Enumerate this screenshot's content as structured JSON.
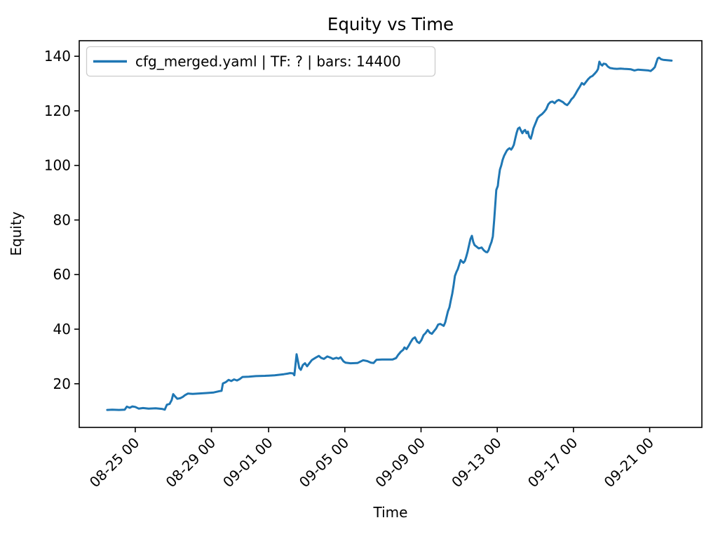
{
  "figure": {
    "background": "#ffffff",
    "text_color": "#000000",
    "spine_color": "#000000"
  },
  "chart_data": {
    "type": "line",
    "title": "Equity vs Time",
    "xlabel": "Time",
    "ylabel": "Equity",
    "grid": false,
    "legend_position": "upper left",
    "x_unit": "days, 0 = 08-23 00:00 (date axis, labels MM-DD HH)",
    "xlim": [
      -0.94,
      31.74
    ],
    "ylim": [
      4.0,
      145.7
    ],
    "y_ticks": [
      20,
      40,
      60,
      80,
      100,
      120,
      140
    ],
    "x_ticks": [
      {
        "d": 2,
        "label": "08-25 00"
      },
      {
        "d": 6,
        "label": "08-29 00"
      },
      {
        "d": 9,
        "label": "09-01 00"
      },
      {
        "d": 13,
        "label": "09-05 00"
      },
      {
        "d": 17,
        "label": "09-09 00"
      },
      {
        "d": 21,
        "label": "09-13 00"
      },
      {
        "d": 25,
        "label": "09-17 00"
      },
      {
        "d": 29,
        "label": "09-21 00"
      }
    ],
    "series": [
      {
        "name": "cfg_merged.yaml | TF: ? | bars: 14400",
        "color": "#1f77b4",
        "points": [
          [
            0.53,
            10.4
          ],
          [
            0.79,
            10.5
          ],
          [
            1.15,
            10.4
          ],
          [
            1.45,
            10.5
          ],
          [
            1.56,
            11.6
          ],
          [
            1.71,
            11.2
          ],
          [
            1.85,
            11.7
          ],
          [
            2.0,
            11.5
          ],
          [
            2.18,
            10.9
          ],
          [
            2.41,
            11.1
          ],
          [
            2.7,
            10.9
          ],
          [
            3.07,
            11.0
          ],
          [
            3.4,
            10.8
          ],
          [
            3.55,
            10.5
          ],
          [
            3.66,
            12.3
          ],
          [
            3.8,
            12.6
          ],
          [
            3.91,
            14.0
          ],
          [
            3.99,
            16.2
          ],
          [
            4.1,
            15.3
          ],
          [
            4.21,
            14.5
          ],
          [
            4.36,
            14.7
          ],
          [
            4.5,
            15.2
          ],
          [
            4.61,
            15.8
          ],
          [
            4.76,
            16.4
          ],
          [
            5.02,
            16.3
          ],
          [
            5.31,
            16.4
          ],
          [
            5.75,
            16.6
          ],
          [
            6.12,
            16.8
          ],
          [
            6.42,
            17.3
          ],
          [
            6.53,
            17.4
          ],
          [
            6.6,
            20.1
          ],
          [
            6.75,
            20.6
          ],
          [
            6.9,
            21.4
          ],
          [
            7.04,
            21.0
          ],
          [
            7.19,
            21.6
          ],
          [
            7.34,
            21.2
          ],
          [
            7.48,
            21.7
          ],
          [
            7.63,
            22.5
          ],
          [
            7.96,
            22.6
          ],
          [
            8.33,
            22.8
          ],
          [
            8.81,
            22.9
          ],
          [
            9.32,
            23.1
          ],
          [
            9.8,
            23.5
          ],
          [
            9.99,
            23.7
          ],
          [
            10.13,
            23.9
          ],
          [
            10.28,
            23.8
          ],
          [
            10.35,
            23.1
          ],
          [
            10.47,
            30.8
          ],
          [
            10.61,
            25.8
          ],
          [
            10.69,
            25.1
          ],
          [
            10.8,
            26.9
          ],
          [
            10.91,
            27.5
          ],
          [
            11.02,
            26.4
          ],
          [
            11.16,
            27.7
          ],
          [
            11.27,
            28.7
          ],
          [
            11.46,
            29.5
          ],
          [
            11.64,
            30.2
          ],
          [
            11.75,
            29.5
          ],
          [
            11.9,
            29.1
          ],
          [
            12.08,
            30.0
          ],
          [
            12.27,
            29.5
          ],
          [
            12.38,
            29.1
          ],
          [
            12.56,
            29.5
          ],
          [
            12.67,
            29.2
          ],
          [
            12.78,
            29.7
          ],
          [
            12.93,
            28.2
          ],
          [
            13.04,
            27.7
          ],
          [
            13.3,
            27.5
          ],
          [
            13.67,
            27.6
          ],
          [
            13.96,
            28.6
          ],
          [
            14.18,
            28.3
          ],
          [
            14.37,
            27.7
          ],
          [
            14.51,
            27.6
          ],
          [
            14.66,
            28.8
          ],
          [
            14.95,
            28.9
          ],
          [
            15.21,
            28.9
          ],
          [
            15.51,
            28.9
          ],
          [
            15.69,
            29.4
          ],
          [
            15.8,
            30.6
          ],
          [
            15.95,
            31.8
          ],
          [
            16.06,
            32.4
          ],
          [
            16.13,
            33.3
          ],
          [
            16.24,
            32.7
          ],
          [
            16.35,
            33.9
          ],
          [
            16.46,
            35.3
          ],
          [
            16.57,
            36.5
          ],
          [
            16.68,
            37.0
          ],
          [
            16.8,
            35.4
          ],
          [
            16.91,
            34.9
          ],
          [
            17.02,
            36.0
          ],
          [
            17.13,
            37.8
          ],
          [
            17.24,
            38.6
          ],
          [
            17.35,
            39.7
          ],
          [
            17.46,
            38.7
          ],
          [
            17.57,
            38.3
          ],
          [
            17.68,
            39.3
          ],
          [
            17.79,
            40.2
          ],
          [
            17.9,
            41.7
          ],
          [
            18.01,
            41.9
          ],
          [
            18.12,
            41.5
          ],
          [
            18.19,
            41.2
          ],
          [
            18.27,
            42.5
          ],
          [
            18.34,
            44.5
          ],
          [
            18.41,
            46.5
          ],
          [
            18.49,
            48.0
          ],
          [
            18.56,
            50.5
          ],
          [
            18.64,
            53.0
          ],
          [
            18.71,
            56.0
          ],
          [
            18.78,
            59.5
          ],
          [
            18.86,
            61.0
          ],
          [
            18.93,
            62.0
          ],
          [
            19.0,
            63.5
          ],
          [
            19.08,
            65.3
          ],
          [
            19.15,
            64.8
          ],
          [
            19.22,
            64.3
          ],
          [
            19.3,
            65.0
          ],
          [
            19.37,
            66.5
          ],
          [
            19.44,
            68.3
          ],
          [
            19.52,
            70.8
          ],
          [
            19.59,
            73.0
          ],
          [
            19.67,
            74.2
          ],
          [
            19.74,
            72.0
          ],
          [
            19.81,
            70.8
          ],
          [
            19.92,
            70.2
          ],
          [
            20.03,
            69.6
          ],
          [
            20.18,
            69.9
          ],
          [
            20.29,
            68.9
          ],
          [
            20.4,
            68.3
          ],
          [
            20.48,
            68.2
          ],
          [
            20.55,
            69.0
          ],
          [
            20.62,
            70.5
          ],
          [
            20.7,
            72.0
          ],
          [
            20.77,
            74.0
          ],
          [
            20.84,
            80.0
          ],
          [
            20.92,
            88.0
          ],
          [
            20.95,
            91.0
          ],
          [
            21.03,
            92.5
          ],
          [
            21.06,
            94.5
          ],
          [
            21.1,
            96.5
          ],
          [
            21.14,
            98.5
          ],
          [
            21.21,
            100.0
          ],
          [
            21.28,
            102.0
          ],
          [
            21.36,
            103.5
          ],
          [
            21.43,
            104.5
          ],
          [
            21.51,
            105.5
          ],
          [
            21.58,
            106.0
          ],
          [
            21.65,
            106.3
          ],
          [
            21.73,
            105.8
          ],
          [
            21.8,
            106.5
          ],
          [
            21.87,
            107.5
          ],
          [
            21.95,
            110.0
          ],
          [
            22.02,
            112.0
          ],
          [
            22.09,
            113.5
          ],
          [
            22.17,
            113.9
          ],
          [
            22.24,
            112.8
          ],
          [
            22.32,
            111.8
          ],
          [
            22.39,
            112.6
          ],
          [
            22.46,
            113.0
          ],
          [
            22.54,
            111.8
          ],
          [
            22.61,
            112.4
          ],
          [
            22.68,
            110.5
          ],
          [
            22.76,
            109.8
          ],
          [
            22.83,
            111.5
          ],
          [
            22.9,
            113.6
          ],
          [
            23.01,
            115.5
          ],
          [
            23.12,
            117.4
          ],
          [
            23.23,
            118.2
          ],
          [
            23.35,
            118.8
          ],
          [
            23.46,
            119.6
          ],
          [
            23.57,
            120.6
          ],
          [
            23.68,
            122.4
          ],
          [
            23.79,
            123.2
          ],
          [
            23.9,
            123.4
          ],
          [
            24.01,
            122.8
          ],
          [
            24.12,
            123.6
          ],
          [
            24.23,
            124.0
          ],
          [
            24.34,
            123.6
          ],
          [
            24.45,
            123.2
          ],
          [
            24.56,
            122.5
          ],
          [
            24.67,
            122.1
          ],
          [
            24.78,
            123.0
          ],
          [
            24.89,
            124.2
          ],
          [
            25.0,
            125.0
          ],
          [
            25.11,
            126.2
          ],
          [
            25.22,
            127.6
          ],
          [
            25.33,
            128.8
          ],
          [
            25.44,
            130.2
          ],
          [
            25.55,
            129.6
          ],
          [
            25.66,
            130.6
          ],
          [
            25.77,
            131.6
          ],
          [
            25.89,
            132.4
          ],
          [
            26.0,
            132.8
          ],
          [
            26.11,
            133.6
          ],
          [
            26.22,
            134.5
          ],
          [
            26.29,
            135.3
          ],
          [
            26.36,
            138.0
          ],
          [
            26.44,
            137.0
          ],
          [
            26.51,
            136.6
          ],
          [
            26.58,
            137.3
          ],
          [
            26.7,
            137.1
          ],
          [
            26.81,
            136.2
          ],
          [
            26.92,
            135.7
          ],
          [
            27.1,
            135.5
          ],
          [
            27.28,
            135.4
          ],
          [
            27.47,
            135.5
          ],
          [
            27.65,
            135.4
          ],
          [
            27.84,
            135.3
          ],
          [
            28.02,
            135.2
          ],
          [
            28.2,
            134.8
          ],
          [
            28.39,
            135.1
          ],
          [
            28.57,
            135.0
          ],
          [
            28.76,
            134.9
          ],
          [
            28.94,
            134.8
          ],
          [
            29.05,
            134.6
          ],
          [
            29.16,
            135.2
          ],
          [
            29.27,
            136.0
          ],
          [
            29.34,
            137.5
          ],
          [
            29.42,
            139.2
          ],
          [
            29.49,
            139.5
          ],
          [
            29.6,
            138.9
          ],
          [
            29.71,
            138.7
          ],
          [
            29.86,
            138.6
          ],
          [
            30.01,
            138.5
          ],
          [
            30.15,
            138.4
          ]
        ]
      }
    ]
  }
}
